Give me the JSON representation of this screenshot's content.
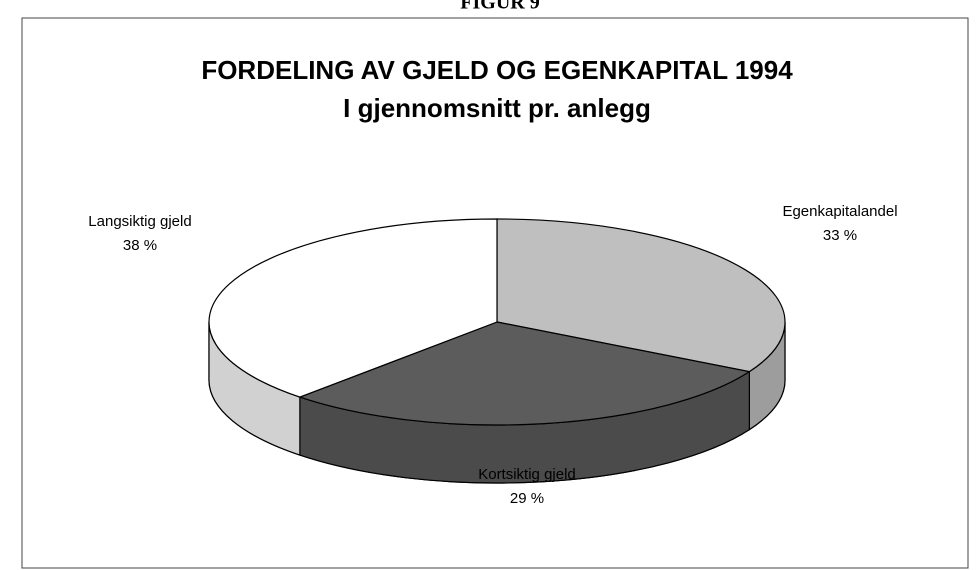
{
  "heading": "FIGUR 9",
  "chart_data": {
    "type": "pie3d",
    "title": "FORDELING AV GJELD OG EGENKAPITAL 1994",
    "subtitle": "I gjennomsnitt pr. anlegg",
    "categories": [
      "Egenkapitalandel",
      "Kortsiktig gjeld",
      "Langsiktig gjeld"
    ],
    "values": [
      33,
      29,
      38
    ],
    "value_labels": [
      "33 %",
      "29 %",
      "38 %"
    ],
    "colors": [
      "#bfbfbf",
      "#5c5c5c",
      "#ffffff"
    ]
  }
}
